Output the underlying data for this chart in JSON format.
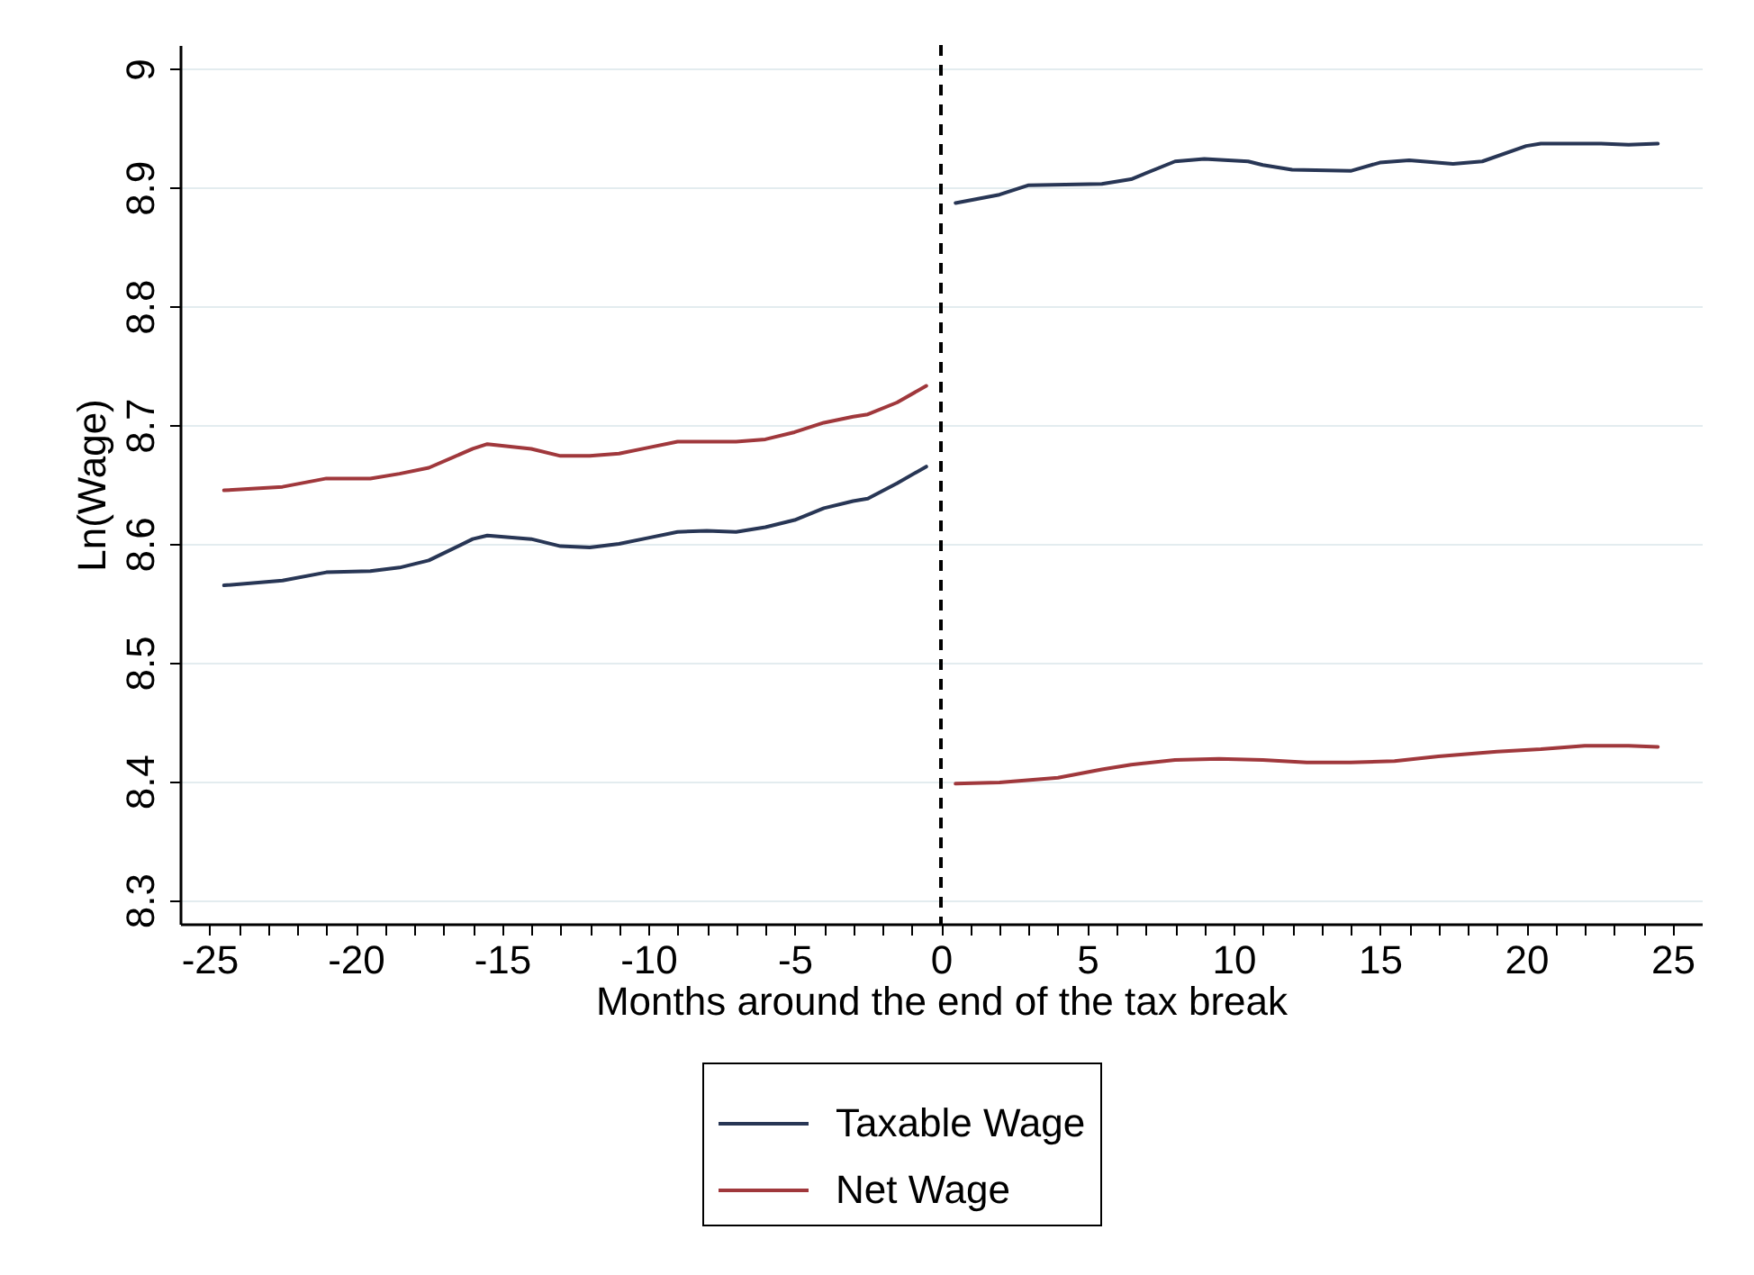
{
  "chart_data": {
    "type": "line",
    "xlabel": "Months around the end of the tax break",
    "ylabel": "Ln(Wage)",
    "xlim": [
      -26,
      26
    ],
    "ylim": [
      8.28,
      9.02
    ],
    "xticks": [
      -25,
      {
        "value": -24,
        "label": null
      },
      {
        "value": -23,
        "label": null
      },
      {
        "value": -22,
        "label": null
      },
      {
        "value": -21,
        "label": null
      },
      -20,
      {
        "value": -19,
        "label": null
      },
      {
        "value": -18,
        "label": null
      },
      {
        "value": -17,
        "label": null
      },
      {
        "value": -16,
        "label": null
      },
      -15,
      {
        "value": -14,
        "label": null
      },
      {
        "value": -13,
        "label": null
      },
      {
        "value": -12,
        "label": null
      },
      {
        "value": -11,
        "label": null
      },
      -10,
      {
        "value": -9,
        "label": null
      },
      {
        "value": -8,
        "label": null
      },
      {
        "value": -7,
        "label": null
      },
      {
        "value": -6,
        "label": null
      },
      -5,
      {
        "value": -4,
        "label": null
      },
      {
        "value": -3,
        "label": null
      },
      {
        "value": -2,
        "label": null
      },
      {
        "value": -1,
        "label": null
      },
      0,
      {
        "value": 1,
        "label": null
      },
      {
        "value": 2,
        "label": null
      },
      {
        "value": 3,
        "label": null
      },
      {
        "value": 4,
        "label": null
      },
      5,
      {
        "value": 6,
        "label": null
      },
      {
        "value": 7,
        "label": null
      },
      {
        "value": 8,
        "label": null
      },
      {
        "value": 9,
        "label": null
      },
      10,
      {
        "value": 11,
        "label": null
      },
      {
        "value": 12,
        "label": null
      },
      {
        "value": 13,
        "label": null
      },
      {
        "value": 14,
        "label": null
      },
      15,
      {
        "value": 16,
        "label": null
      },
      {
        "value": 17,
        "label": null
      },
      {
        "value": 18,
        "label": null
      },
      {
        "value": 19,
        "label": null
      },
      20,
      {
        "value": 21,
        "label": null
      },
      {
        "value": 22,
        "label": null
      },
      {
        "value": 23,
        "label": null
      },
      {
        "value": 24,
        "label": null
      },
      25
    ],
    "yticks": [
      8.3,
      8.4,
      8.5,
      8.6,
      8.7,
      8.8,
      8.9,
      9
    ],
    "grid": "y",
    "legend": "bottom",
    "line_style": "solid",
    "ref_lines": [
      {
        "axis": "x",
        "value": 0,
        "color": "#000000",
        "line_style": "dashed"
      }
    ],
    "series": [
      {
        "name": "Taxable Wage",
        "color": "#283655",
        "x": [
          -24.5,
          -22.5,
          -21,
          -19.5,
          -18.5,
          -17.5,
          -16,
          -15.5,
          -14,
          -13,
          -12,
          -11,
          -10,
          -9,
          -8,
          -7,
          -6,
          -5,
          -4,
          -3,
          -2.5,
          -1.5,
          -0.5,
          null,
          0.5,
          2,
          3,
          5.5,
          6.5,
          8,
          9,
          10.5,
          11,
          12,
          14,
          15,
          16,
          17.5,
          18.5,
          20,
          20.5,
          22.5,
          23.5,
          24.5
        ],
        "values": [
          8.565,
          8.569,
          8.576,
          8.577,
          8.58,
          8.586,
          8.604,
          8.607,
          8.604,
          8.598,
          8.597,
          8.6,
          8.605,
          8.61,
          8.611,
          8.61,
          8.614,
          8.62,
          8.63,
          8.636,
          8.638,
          8.651,
          8.665,
          null,
          8.887,
          8.894,
          8.902,
          8.903,
          8.907,
          8.922,
          8.924,
          8.922,
          8.919,
          8.915,
          8.914,
          8.921,
          8.923,
          8.92,
          8.922,
          8.935,
          8.937,
          8.937,
          8.936,
          8.937
        ]
      },
      {
        "name": "Net Wage",
        "color": "#a0383c",
        "x": [
          -24.5,
          -22.5,
          -21,
          -19.5,
          -18.5,
          -17.5,
          -16,
          -15.5,
          -14,
          -13,
          -12,
          -11,
          -10,
          -9,
          -8,
          -7,
          -6,
          -5,
          -4,
          -3,
          -2.5,
          -1.5,
          -0.5,
          null,
          0.5,
          2,
          4,
          5.5,
          6.5,
          8,
          9.5,
          11,
          12.5,
          14,
          15.5,
          17,
          19,
          20.5,
          22,
          23.5,
          24.5
        ],
        "values": [
          8.645,
          8.648,
          8.655,
          8.655,
          8.659,
          8.664,
          8.68,
          8.684,
          8.68,
          8.674,
          8.674,
          8.676,
          8.681,
          8.686,
          8.686,
          8.686,
          8.688,
          8.694,
          8.702,
          8.707,
          8.709,
          8.719,
          8.733,
          null,
          8.398,
          8.399,
          8.403,
          8.41,
          8.414,
          8.418,
          8.419,
          8.418,
          8.416,
          8.416,
          8.417,
          8.421,
          8.425,
          8.427,
          8.43,
          8.43,
          8.429
        ]
      }
    ]
  }
}
